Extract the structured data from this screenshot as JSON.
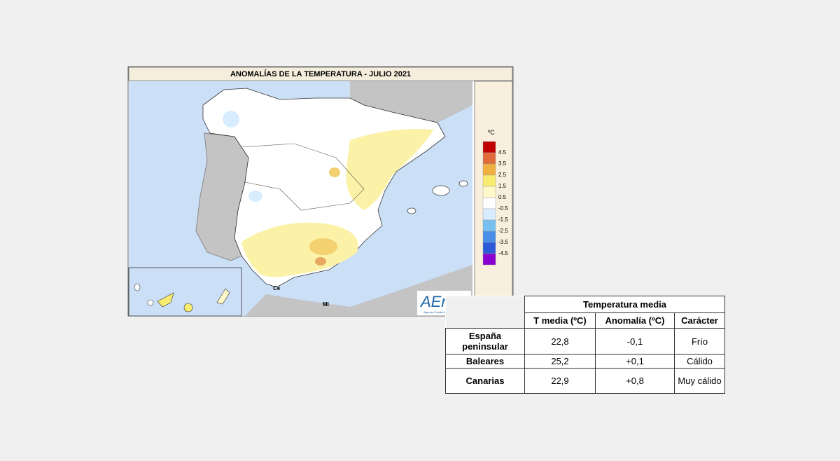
{
  "map": {
    "title": "ANOMALÍAS DE LA TEMPERATURA - JULIO 2021",
    "legend": {
      "unit": "ºC",
      "colors": [
        "#c00000",
        "#e06a3a",
        "#f0b040",
        "#f8ec70",
        "#fff8c8",
        "#ffffff",
        "#d8ecff",
        "#78c0f0",
        "#4a8ee8",
        "#2c5ad8",
        "#8a00d0"
      ],
      "labels": [
        "4.5",
        "3.5",
        "2.5",
        "1.5",
        "0.5",
        "-0.5",
        "-1.5",
        "-2.5",
        "-3.5",
        "-4.5"
      ]
    },
    "places": [
      "Ce",
      "Ml"
    ],
    "logo": "AEmet",
    "logo_caption": "Agencia Estatal de Meteorología"
  },
  "table": {
    "title": "Temperatura media",
    "columns": [
      "T media (ºC)",
      "Anomalía (ºC)",
      "Carácter"
    ],
    "rows": [
      [
        "España peninsular",
        "22,8",
        "-0,1",
        "Frío"
      ],
      [
        "Baleares",
        "25,2",
        "+0,1",
        "Cálido"
      ],
      [
        "Canarias",
        "22,9",
        "+0,8",
        "Muy cálido"
      ]
    ]
  }
}
